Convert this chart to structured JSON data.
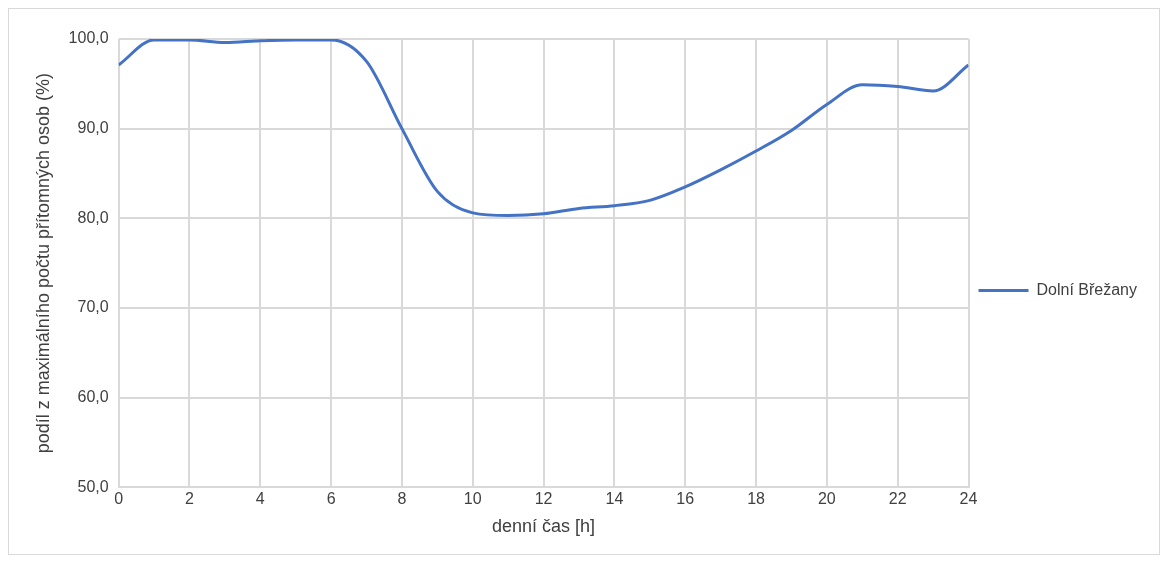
{
  "chart_data": {
    "type": "line",
    "xlabel": "denní čas [h]",
    "ylabel": "podíl z maximálního počtu přítomných osob (%)",
    "x": [
      0,
      1,
      2,
      3,
      4,
      5,
      6,
      7,
      8,
      9,
      10,
      11,
      12,
      13,
      14,
      15,
      16,
      17,
      18,
      19,
      20,
      21,
      22,
      23,
      24
    ],
    "series": [
      {
        "name": "Dolní Břežany",
        "color": "#4472c4",
        "values": [
          97.1,
          99.9,
          99.9,
          99.6,
          99.8,
          99.9,
          99.9,
          97.5,
          90.0,
          83.0,
          80.6,
          80.3,
          80.5,
          81.1,
          81.4,
          82.0,
          83.5,
          85.4,
          87.5,
          89.8,
          92.7,
          94.9,
          94.7,
          94.2,
          97.1
        ]
      }
    ],
    "xlim": [
      0,
      24
    ],
    "xticks": [
      0,
      2,
      4,
      6,
      8,
      10,
      12,
      14,
      16,
      18,
      20,
      22,
      24
    ],
    "ylim": [
      50,
      100
    ],
    "yticks": [
      {
        "value": 50,
        "label": "50,0"
      },
      {
        "value": 60,
        "label": "60,0"
      },
      {
        "value": 70,
        "label": "70,0"
      },
      {
        "value": 80,
        "label": "80,0"
      },
      {
        "value": 90,
        "label": "90,0"
      },
      {
        "value": 100,
        "label": "100,0"
      }
    ],
    "grid": true,
    "legend": "right",
    "marker": "none",
    "line_style": "solid"
  }
}
